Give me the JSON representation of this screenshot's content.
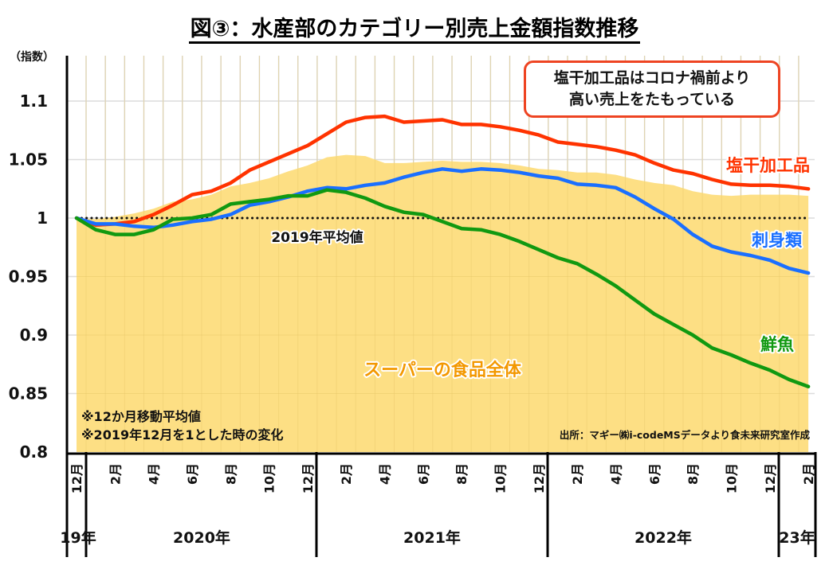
{
  "title": "図③：水産部のカテゴリー別売上金額指数推移",
  "callout": {
    "line1": "塩干加工品はコロナ禍前より",
    "line2": "高い売上をたもっている"
  },
  "notes": [
    "※12か月移動平均値",
    "※2019年12月を1とした時の変化"
  ],
  "source": "出所：マギー㈱i-codeMSデータより食未来研究室作成",
  "baseline_label": "2019年平均値",
  "colors": {
    "red": "#ff3300",
    "blue": "#1a6fff",
    "green": "#119911",
    "area": "#fddf84",
    "area_label": "#f39800"
  },
  "chart_data": {
    "type": "line",
    "title": "図③：水産部のカテゴリー別売上金額指数推移",
    "ylabel": "（指数）",
    "xlabel": "",
    "ylim": [
      0.8,
      1.12
    ],
    "yticks": [
      0.8,
      0.85,
      0.9,
      0.95,
      1,
      1.05,
      1.1
    ],
    "ytick_labels": [
      "0.8",
      "0.85",
      "0.9",
      "0.95",
      "1",
      "1.05",
      "1.1"
    ],
    "grid": true,
    "month_tick_labels": [
      "12月",
      "2月",
      "4月",
      "6月",
      "8月",
      "10月",
      "12月",
      "2月",
      "4月",
      "6月",
      "8月",
      "10月",
      "12月",
      "2月",
      "4月",
      "6月",
      "8月",
      "10月",
      "12月",
      "2月"
    ],
    "year_labels": [
      "19年",
      "2020年",
      "2021年",
      "2022年",
      "23年"
    ],
    "x": [
      "2019-12",
      "2020-01",
      "2020-02",
      "2020-03",
      "2020-04",
      "2020-05",
      "2020-06",
      "2020-07",
      "2020-08",
      "2020-09",
      "2020-10",
      "2020-11",
      "2020-12",
      "2021-01",
      "2021-02",
      "2021-03",
      "2021-04",
      "2021-05",
      "2021-06",
      "2021-07",
      "2021-08",
      "2021-09",
      "2021-10",
      "2021-11",
      "2021-12",
      "2022-01",
      "2022-02",
      "2022-03",
      "2022-04",
      "2022-05",
      "2022-06",
      "2022-07",
      "2022-08",
      "2022-09",
      "2022-10",
      "2022-11",
      "2022-12",
      "2023-01",
      "2023-02"
    ],
    "baseline": 1,
    "series": [
      {
        "name": "スーパーの食品全体",
        "type": "area",
        "color": "#fddf84",
        "values": [
          1.0,
          0.999,
          1.001,
          1.004,
          1.008,
          1.014,
          1.016,
          1.02,
          1.027,
          1.03,
          1.034,
          1.04,
          1.045,
          1.052,
          1.054,
          1.053,
          1.047,
          1.047,
          1.048,
          1.049,
          1.048,
          1.048,
          1.047,
          1.045,
          1.042,
          1.041,
          1.039,
          1.039,
          1.037,
          1.033,
          1.03,
          1.028,
          1.023,
          1.02,
          1.019,
          1.02,
          1.02,
          1.02,
          1.019
        ]
      },
      {
        "name": "塩干加工品",
        "type": "line",
        "color": "#ff3300",
        "values": [
          1.0,
          0.994,
          0.995,
          0.997,
          1.003,
          1.011,
          1.02,
          1.023,
          1.03,
          1.041,
          1.048,
          1.055,
          1.062,
          1.072,
          1.082,
          1.086,
          1.087,
          1.082,
          1.083,
          1.084,
          1.08,
          1.08,
          1.078,
          1.075,
          1.071,
          1.065,
          1.063,
          1.061,
          1.058,
          1.054,
          1.047,
          1.041,
          1.038,
          1.033,
          1.029,
          1.028,
          1.028,
          1.027,
          1.025
        ]
      },
      {
        "name": "刺身類",
        "type": "line",
        "color": "#1a6fff",
        "values": [
          1.0,
          0.995,
          0.995,
          0.993,
          0.992,
          0.994,
          0.997,
          0.999,
          1.003,
          1.011,
          1.014,
          1.018,
          1.023,
          1.026,
          1.025,
          1.028,
          1.03,
          1.035,
          1.039,
          1.042,
          1.04,
          1.042,
          1.041,
          1.039,
          1.036,
          1.034,
          1.029,
          1.028,
          1.026,
          1.018,
          1.008,
          0.999,
          0.986,
          0.976,
          0.971,
          0.968,
          0.964,
          0.957,
          0.953
        ]
      },
      {
        "name": "鮮魚",
        "type": "line",
        "color": "#119911",
        "values": [
          1.0,
          0.99,
          0.986,
          0.986,
          0.99,
          0.999,
          1.0,
          1.003,
          1.012,
          1.014,
          1.016,
          1.019,
          1.019,
          1.024,
          1.022,
          1.017,
          1.01,
          1.005,
          1.003,
          0.997,
          0.991,
          0.99,
          0.986,
          0.98,
          0.973,
          0.966,
          0.961,
          0.952,
          0.942,
          0.93,
          0.918,
          0.909,
          0.9,
          0.889,
          0.883,
          0.876,
          0.87,
          0.862,
          0.856
        ]
      }
    ],
    "annotations": [
      "2019年平均値",
      "スーパーの食品全体",
      "塩干加工品",
      "刺身類",
      "鮮魚"
    ]
  }
}
